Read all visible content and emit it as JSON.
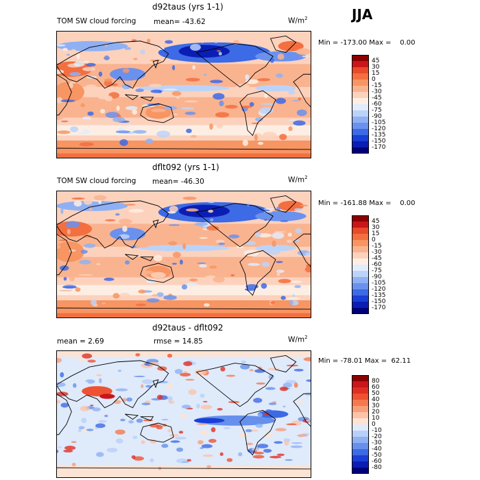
{
  "season": "JJA",
  "colors": {
    "land_outline": "#000000",
    "warm_dark": "#8b0000",
    "warm_light": "#fcd7c3",
    "cool_light": "#cfe0fb",
    "cool_dark": "#00007a"
  },
  "panels": [
    {
      "title": "d92taus (yrs 1-1)",
      "variable": "TOM SW cloud forcing",
      "stat_text": "mean=  -43.62",
      "units": "W/m",
      "units_sup": "2",
      "minmax": "Min = -173.00 Max =    0.00",
      "legend_labels": [
        "45",
        "30",
        "15",
        "0",
        "-15",
        "-30",
        "-45",
        "-60",
        "-75",
        "-90",
        "-105",
        "-120",
        "-135",
        "-150",
        "-170"
      ],
      "legend_colors": [
        "#8b0000",
        "#c8161b",
        "#e84a2a",
        "#f36f40",
        "#f79563",
        "#fab38f",
        "#fcd2bd",
        "#fdeee4",
        "#e1ecfc",
        "#bcd3f8",
        "#8fb1f3",
        "#6a91ee",
        "#3d6ae5",
        "#1a3fd6",
        "#0b1eb4",
        "#00007a"
      ],
      "pattern": "base1"
    },
    {
      "title": "dflt092 (yrs 1-1)",
      "variable": "TOM SW cloud forcing",
      "stat_text": "mean=  -46.30",
      "units": "W/m",
      "units_sup": "2",
      "minmax": "Min = -161.88 Max =    0.00",
      "legend_labels": [
        "45",
        "30",
        "15",
        "0",
        "-15",
        "-30",
        "-45",
        "-60",
        "-75",
        "-90",
        "-105",
        "-120",
        "-135",
        "-150",
        "-170"
      ],
      "legend_colors": [
        "#8b0000",
        "#c8161b",
        "#e84a2a",
        "#f36f40",
        "#f79563",
        "#fab38f",
        "#fcd2bd",
        "#fdeee4",
        "#e1ecfc",
        "#bcd3f8",
        "#8fb1f3",
        "#6a91ee",
        "#3d6ae5",
        "#1a3fd6",
        "#0b1eb4",
        "#00007a"
      ],
      "pattern": "base2"
    },
    {
      "title": "d92taus - dflt092",
      "variable": "mean =    2.69",
      "stat_text": "rmse =   14.85",
      "units": "W/m",
      "units_sup": "2",
      "minmax": "Min = -78.01 Max =  62.11",
      "legend_labels": [
        "80",
        "60",
        "50",
        "40",
        "30",
        "20",
        "10",
        "0",
        "-10",
        "-20",
        "-30",
        "-40",
        "-50",
        "-60",
        "-80"
      ],
      "legend_colors": [
        "#8b0000",
        "#c8161b",
        "#e02f22",
        "#ef5232",
        "#f5784f",
        "#f89e79",
        "#fbc3a7",
        "#fde3d4",
        "#dfeafb",
        "#b8d0f7",
        "#8fb1f3",
        "#6690ec",
        "#3d6ae5",
        "#1a3fd6",
        "#0b1eb4",
        "#00007a"
      ],
      "pattern": "diff"
    }
  ]
}
